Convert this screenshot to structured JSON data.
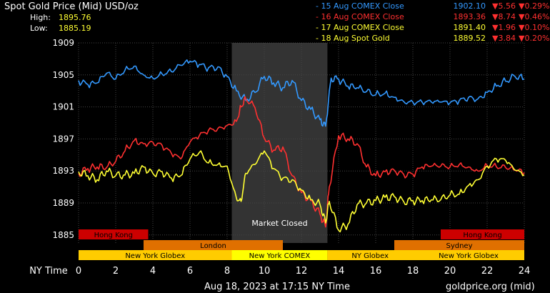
{
  "header": {
    "title": "Spot Gold Price (Mid) USD/oz",
    "high_label": "High:",
    "high_value": "1895.76",
    "low_label": "Low:",
    "low_value": "1885.19"
  },
  "legend": [
    {
      "name": "15 Aug COMEX Close",
      "price": "1902.10",
      "change": "5.56",
      "pct": "0.29%",
      "color": "#3399ff"
    },
    {
      "name": "16 Aug COMEX Close",
      "price": "1893.36",
      "change": "8.74",
      "pct": "0.46%",
      "color": "#ff3030"
    },
    {
      "name": "17 Aug COMEX Close",
      "price": "1891.40",
      "change": "1.96",
      "pct": "0.10%",
      "color": "#ffff33"
    },
    {
      "name": "18 Aug Spot Gold",
      "price": "1889.52",
      "change": "3.84",
      "pct": "0.20%",
      "color": "#ffff33"
    }
  ],
  "change_arrow": "▼",
  "sessions": {
    "market_closed": "Market Closed",
    "hong_kong": "Hong Kong",
    "london": "London",
    "sydney": "Sydney",
    "new_york_globex": "New York Globex",
    "new_york_comex": "New York COMEX",
    "ny_globex": "NY Globex"
  },
  "xaxis_label": "NY Time",
  "footer": {
    "timestamp": "Aug 18, 2023 at 17:15 NY Time",
    "source": "goldprice.org (mid)"
  },
  "chart_data": {
    "type": "line",
    "xlabel": "NY Time",
    "ylabel": "",
    "xlim": [
      0,
      24
    ],
    "ylim": [
      1884,
      1909
    ],
    "yticks": [
      1885,
      1889,
      1893,
      1897,
      1901,
      1905,
      1909
    ],
    "xticks": [
      0,
      2,
      4,
      6,
      8,
      10,
      12,
      14,
      16,
      18,
      20,
      22,
      24
    ],
    "grid": true,
    "market_closed_hours": [
      8.25,
      13.4
    ],
    "series": [
      {
        "name": "15 Aug COMEX Close",
        "color": "#3399ff",
        "x": [
          0,
          0.5,
          1,
          1.5,
          2,
          2.5,
          3,
          3.5,
          4,
          4.5,
          5,
          5.5,
          6,
          6.5,
          7,
          7.5,
          8,
          8.5,
          9,
          9.5,
          10,
          10.5,
          11,
          11.5,
          12,
          12.5,
          13,
          13.3,
          13.6,
          14,
          14.5,
          15,
          15.5,
          16,
          16.5,
          17,
          17.5,
          18,
          18.5,
          19,
          19.5,
          20,
          20.5,
          21,
          21.5,
          22,
          22.5,
          23,
          23.5,
          24
        ],
        "y": [
          1904.3,
          1903.8,
          1904.0,
          1905.2,
          1904.5,
          1905.6,
          1906.1,
          1905.0,
          1904.6,
          1905.1,
          1905.4,
          1906.2,
          1906.7,
          1906.3,
          1905.9,
          1906.0,
          1904.8,
          1903.0,
          1901.8,
          1902.8,
          1904.8,
          1904.0,
          1903.4,
          1904.3,
          1901.8,
          1900.7,
          1899.4,
          1898.6,
          1904.6,
          1904.5,
          1903.6,
          1903.4,
          1902.9,
          1902.5,
          1902.7,
          1902.2,
          1901.7,
          1901.6,
          1901.6,
          1901.6,
          1901.6,
          1901.5,
          1901.8,
          1902.2,
          1902.0,
          1902.8,
          1903.6,
          1904.2,
          1904.8,
          1904.5
        ]
      },
      {
        "name": "16 Aug COMEX Close",
        "color": "#ff3030",
        "x": [
          0,
          0.5,
          1,
          1.5,
          2,
          2.5,
          3,
          3.5,
          4,
          4.5,
          5,
          5.5,
          6,
          6.5,
          7,
          7.5,
          8,
          8.5,
          8.75,
          9,
          9.5,
          10,
          10.5,
          11,
          11.5,
          12,
          12.5,
          13,
          13.3,
          13.5,
          14,
          14.5,
          15,
          15.5,
          16,
          16.5,
          17,
          17.5,
          18,
          18.5,
          19,
          19.5,
          20,
          20.5,
          21,
          21.5,
          22,
          22.5,
          23,
          23.5,
          24
        ],
        "y": [
          1892.7,
          1893.3,
          1893.5,
          1893.4,
          1894.2,
          1895.5,
          1896.8,
          1896.4,
          1896.6,
          1896.2,
          1895.2,
          1894.5,
          1896.6,
          1897.4,
          1898.1,
          1898.3,
          1898.7,
          1899.2,
          1901.0,
          1902.0,
          1900.9,
          1897.1,
          1895.6,
          1896.0,
          1892.4,
          1890.3,
          1889.3,
          1887.6,
          1886.0,
          1891.0,
          1897.4,
          1897.0,
          1896.4,
          1893.5,
          1892.4,
          1892.9,
          1893.1,
          1892.6,
          1892.6,
          1893.5,
          1893.6,
          1893.6,
          1893.5,
          1893.8,
          1893.5,
          1893.0,
          1893.7,
          1893.5,
          1893.4,
          1893.1,
          1892.8
        ]
      },
      {
        "name": "17 Aug COMEX Close",
        "color": "#ffff33",
        "x": [
          0,
          0.5,
          1,
          1.5,
          2,
          2.5,
          3,
          3.5,
          4,
          4.5,
          5,
          5.5,
          6,
          6.5,
          7,
          7.5,
          8,
          8.5,
          8.75,
          9,
          9.5,
          10,
          10.5,
          11,
          11.5,
          12,
          12.5,
          13,
          13.3,
          13.5,
          14,
          14.5,
          15,
          15.5,
          16,
          16.5,
          17,
          17.5,
          18,
          18.5,
          19,
          19.5,
          20,
          20.5,
          21,
          21.5,
          22,
          22.5,
          23,
          23.5,
          24
        ],
        "y": [
          1892.9,
          1892.4,
          1891.9,
          1893.0,
          1892.4,
          1892.5,
          1892.7,
          1893.5,
          1892.7,
          1892.9,
          1892.1,
          1892.4,
          1894.5,
          1895.3,
          1894.0,
          1893.8,
          1893.6,
          1889.6,
          1889.2,
          1892.7,
          1893.8,
          1895.5,
          1893.3,
          1892.1,
          1891.9,
          1890.6,
          1889.4,
          1888.8,
          1886.5,
          1889.2,
          1885.6,
          1886.3,
          1888.8,
          1889.0,
          1889.3,
          1889.7,
          1889.8,
          1889.2,
          1889.3,
          1889.3,
          1889.4,
          1889.4,
          1890.0,
          1890.1,
          1891.2,
          1891.9,
          1893.6,
          1894.5,
          1894.3,
          1893.1,
          1892.5
        ]
      }
    ]
  }
}
